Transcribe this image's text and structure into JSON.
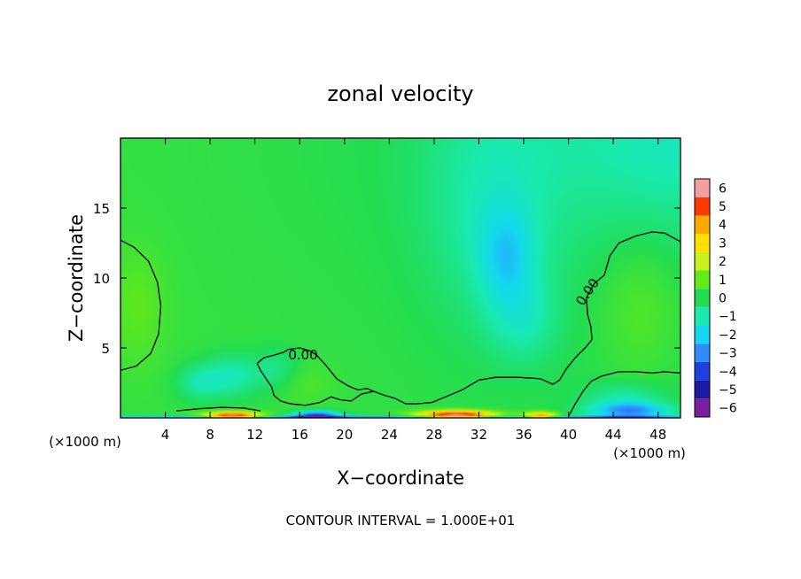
{
  "chart_data": {
    "type": "heatmap",
    "title": "zonal velocity",
    "xlabel": "X−coordinate",
    "ylabel": "Z−coordinate",
    "x_unit_left": "(×1000 m)",
    "x_unit_right": "(×1000 m)",
    "footer": "CONTOUR INTERVAL = 1.000E+01",
    "xlim": [
      0,
      50
    ],
    "ylim": [
      0,
      20
    ],
    "x_ticks": [
      4,
      8,
      12,
      16,
      20,
      24,
      28,
      32,
      36,
      40,
      44,
      48
    ],
    "y_ticks": [
      5,
      10,
      15
    ],
    "colorbar": {
      "levels": [
        -6,
        -5,
        -4,
        -3,
        -2,
        -1,
        0,
        1,
        2,
        3,
        4,
        5,
        6
      ],
      "labels": [
        "−6",
        "−5",
        "−4",
        "−3",
        "−2",
        "−1",
        "0",
        "1",
        "2",
        "3",
        "4",
        "5",
        "6"
      ],
      "colors": [
        "#7b1fa2",
        "#1a1aa6",
        "#1f3fe0",
        "#2f8bff",
        "#14d8f0",
        "#1aeab0",
        "#22dc52",
        "#64ea1a",
        "#c4f21a",
        "#ffe000",
        "#ffaa00",
        "#ff3a00",
        "#f0a0a0"
      ]
    },
    "contour_labels": [
      {
        "text": "0.00",
        "x": 16.3,
        "y": 4.5,
        "angle": 0
      },
      {
        "text": "0.00",
        "x": 41.7,
        "y": 9.0,
        "angle": -55
      }
    ],
    "contour_lines": [
      [
        [
          0,
          12.7
        ],
        [
          1.2,
          12.2
        ],
        [
          2.5,
          11.2
        ],
        [
          3.3,
          9.7
        ],
        [
          3.6,
          8.0
        ],
        [
          3.4,
          6.0
        ],
        [
          2.7,
          4.6
        ],
        [
          1.4,
          3.7
        ],
        [
          0,
          3.4
        ]
      ],
      [
        [
          12.2,
          3.9
        ],
        [
          12.5,
          3.4
        ],
        [
          13.0,
          2.8
        ],
        [
          13.5,
          2.2
        ],
        [
          13.7,
          1.6
        ],
        [
          14.3,
          1.2
        ],
        [
          15.2,
          1.0
        ],
        [
          16.5,
          0.9
        ],
        [
          17.8,
          1.1
        ],
        [
          18.8,
          1.5
        ],
        [
          19.6,
          1.3
        ],
        [
          20.6,
          1.2
        ],
        [
          21.5,
          1.7
        ],
        [
          22.6,
          1.9
        ],
        [
          23.6,
          1.6
        ],
        [
          24.5,
          1.4
        ],
        [
          25.5,
          1.0
        ],
        [
          26.4,
          1.0
        ],
        [
          27.8,
          1.1
        ],
        [
          29.0,
          1.5
        ],
        [
          30.5,
          2.0
        ],
        [
          32.0,
          2.7
        ],
        [
          33.5,
          2.9
        ],
        [
          35.5,
          2.9
        ],
        [
          37.5,
          2.8
        ],
        [
          38.6,
          2.4
        ],
        [
          39.2,
          2.7
        ],
        [
          39.8,
          3.5
        ],
        [
          40.6,
          4.3
        ],
        [
          41.6,
          5.1
        ],
        [
          42.1,
          5.6
        ],
        [
          42.0,
          6.5
        ],
        [
          41.7,
          7.4
        ],
        [
          41.6,
          8.6
        ],
        [
          42.3,
          9.6
        ],
        [
          43.2,
          10.2
        ],
        [
          43.7,
          11.6
        ],
        [
          44.5,
          12.5
        ],
        [
          46.0,
          13.0
        ],
        [
          47.5,
          13.3
        ],
        [
          48.6,
          13.2
        ],
        [
          50.0,
          12.6
        ]
      ],
      [
        [
          12.2,
          3.9
        ],
        [
          12.8,
          4.3
        ],
        [
          13.8,
          4.5
        ],
        [
          14.6,
          4.7
        ],
        [
          15.0,
          4.9
        ],
        [
          16.0,
          5.0
        ],
        [
          16.9,
          4.8
        ],
        [
          17.5,
          4.5
        ],
        [
          18.3,
          3.8
        ],
        [
          19.3,
          2.8
        ],
        [
          20.3,
          2.3
        ],
        [
          21.2,
          2.0
        ],
        [
          22.0,
          2.1
        ],
        [
          22.6,
          1.9
        ]
      ],
      [
        [
          5.0,
          0.5
        ],
        [
          7.0,
          0.65
        ],
        [
          9.0,
          0.75
        ],
        [
          11.0,
          0.7
        ],
        [
          12.5,
          0.5
        ]
      ],
      [
        [
          40.0,
          0.1
        ],
        [
          40.6,
          1.0
        ],
        [
          41.3,
          1.9
        ],
        [
          42.0,
          2.6
        ],
        [
          43.0,
          3.0
        ],
        [
          44.5,
          3.3
        ],
        [
          46.0,
          3.3
        ],
        [
          47.5,
          3.2
        ],
        [
          48.6,
          3.3
        ],
        [
          50.0,
          3.2
        ]
      ]
    ],
    "field_features": [
      {
        "value": 0.3,
        "x": 0,
        "y": 10,
        "sx": 50,
        "sy": 100
      },
      {
        "value": -0.8,
        "x": 50,
        "y": 20,
        "sx": 12,
        "sy": 6
      },
      {
        "value": -0.5,
        "x": 50,
        "y": 20,
        "sx": 30,
        "sy": 12
      },
      {
        "value": -0.9,
        "x": 33,
        "y": 15,
        "sx": 6,
        "sy": 9
      },
      {
        "value": -1.5,
        "x": 34.5,
        "y": 11.5,
        "sx": 2.5,
        "sy": 3.5
      },
      {
        "value": -0.9,
        "x": 36,
        "y": 7,
        "sx": 3,
        "sy": 3
      },
      {
        "value": 0.7,
        "x": 46.5,
        "y": 8,
        "sx": 4,
        "sy": 5
      },
      {
        "value": 0.6,
        "x": 1.5,
        "y": 8,
        "sx": 2.5,
        "sy": 4
      },
      {
        "value": 0.4,
        "x": 16.5,
        "y": 2.5,
        "sx": 2.5,
        "sy": 1.5
      },
      {
        "value": -1.3,
        "x": 10,
        "y": 3,
        "sx": 2.5,
        "sy": 1.5
      },
      {
        "value": -1.1,
        "x": 7,
        "y": 2.5,
        "sx": 2,
        "sy": 1.3
      },
      {
        "value": -0.8,
        "x": 14,
        "y": 3.5,
        "sx": 2,
        "sy": 1.5
      },
      {
        "value": -3.5,
        "x": 25,
        "y": 0,
        "sx": 50,
        "sy": 0.15
      },
      {
        "value": 6.5,
        "x": 10,
        "y": 0.1,
        "sx": 2.5,
        "sy": 0.3
      },
      {
        "value": 6.5,
        "x": 30,
        "y": 0.15,
        "sx": 3.5,
        "sy": 0.35
      },
      {
        "value": 5.0,
        "x": 37.5,
        "y": 0.1,
        "sx": 1.5,
        "sy": 0.3
      },
      {
        "value": -4.0,
        "x": 17.5,
        "y": 0.15,
        "sx": 2,
        "sy": 0.35
      },
      {
        "value": -3.0,
        "x": 45.5,
        "y": 0.5,
        "sx": 3.5,
        "sy": 0.6
      },
      {
        "value": -1.0,
        "x": 45,
        "y": 1.5,
        "sx": 3.5,
        "sy": 1.0
      }
    ]
  }
}
